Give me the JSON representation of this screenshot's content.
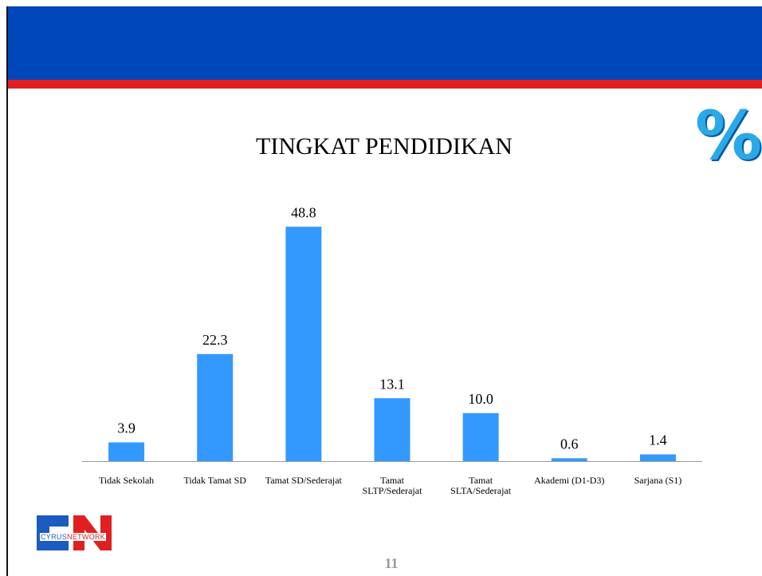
{
  "chart_data": {
    "type": "bar",
    "title": "TINGKAT PENDIDIKAN",
    "categories": [
      "Tidak Sekolah",
      "Tidak Tamat SD",
      "Tamat SD/Sederajat",
      "Tamat SLTP/Sederajat",
      "Tamat SLTA/Sederajat",
      "Akademi (D1-D3)",
      "Sarjana (S1)"
    ],
    "values": [
      3.9,
      22.3,
      48.8,
      13.1,
      10.0,
      0.6,
      1.4
    ],
    "value_labels": [
      "3.9",
      "22.3",
      "48.8",
      "13.1",
      "10.0",
      "0.6",
      "1.4"
    ],
    "color": "#3399ff"
  },
  "slide": {
    "icon": "%",
    "page_number": "11",
    "logo_text_1": "CYRUS",
    "logo_text_2": "NETWORK"
  }
}
